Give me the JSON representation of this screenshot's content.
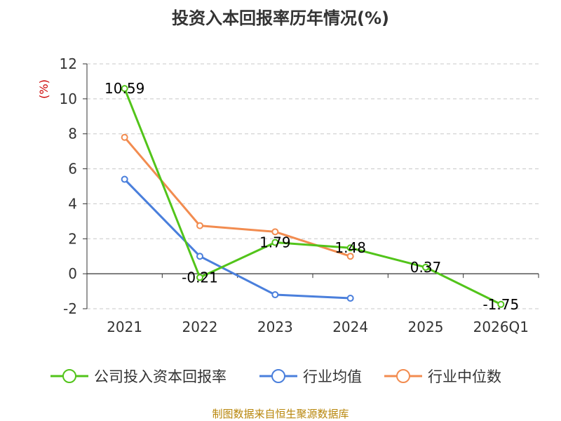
{
  "chart_data": {
    "type": "line",
    "title": "投资入本回报率历年情况(%)",
    "ylabel": "(%)",
    "xlabel": "",
    "categories": [
      "2021",
      "2022",
      "2023",
      "2024",
      "2025",
      "2026Q1"
    ],
    "ylim": [
      -2,
      12
    ],
    "yticks": [
      -2,
      0,
      2,
      4,
      6,
      8,
      10,
      12
    ],
    "series": [
      {
        "name": "公司投入资本回报率",
        "color": "#52c41a",
        "values": [
          10.59,
          -0.21,
          1.79,
          1.48,
          0.37,
          -1.75
        ],
        "labels": [
          "10.59",
          "-0.21",
          "1.79",
          "1.48",
          "0.37",
          "-1.75"
        ]
      },
      {
        "name": "行业均值",
        "color": "#4a7fdc",
        "values": [
          5.4,
          1.0,
          -1.2,
          -1.4,
          null,
          null
        ]
      },
      {
        "name": "行业中位数",
        "color": "#f28c50",
        "values": [
          7.8,
          2.75,
          2.4,
          1.0,
          null,
          null
        ]
      }
    ],
    "grid": true,
    "legend_position": "bottom"
  },
  "source": "制图数据来自恒生聚源数据库"
}
